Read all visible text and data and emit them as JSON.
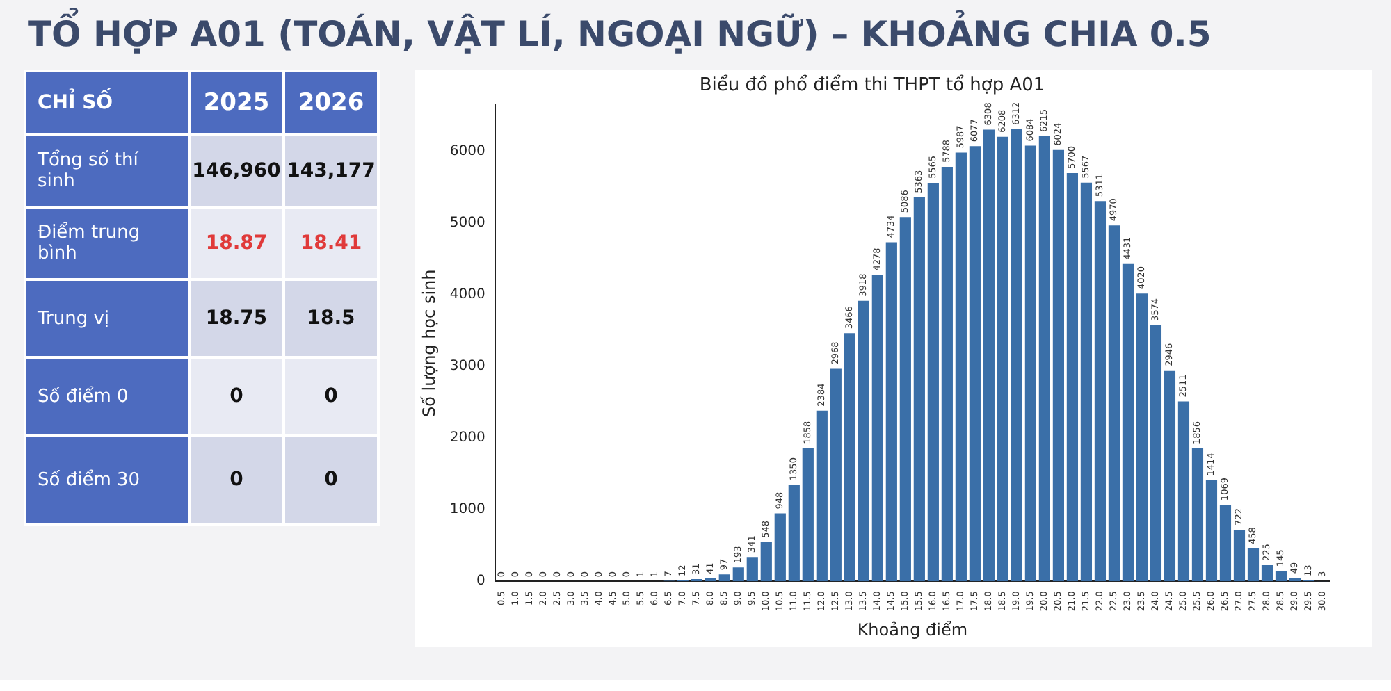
{
  "chart_data": [
    {
      "type": "other",
      "title": "TỔ HỢP A01 (TOÁN, VẬT LÍ, NGOẠI NGỮ) – KHOẢNG CHIA 0.5",
      "annotations": [
        "CHỈ SỐ"
      ],
      "categories": [
        "2025",
        "2026"
      ],
      "y_categories": [
        "Tổng số thí sinh",
        "Điểm trung bình",
        "Trung vị",
        "Số điểm 0",
        "Số điểm 30"
      ],
      "cell_labels": [
        [
          "146,960",
          "143,177"
        ],
        [
          "18.87",
          "18.41"
        ],
        [
          "18.75",
          "18.5"
        ],
        [
          "0",
          "0"
        ],
        [
          "0",
          "0"
        ]
      ]
    },
    {
      "type": "bar",
      "title": "Biểu đồ phổ điểm thi THPT tổ hợp A01",
      "xlabel": "Khoảng điểm",
      "ylabel": "Số lượng học sinh",
      "categories": [
        "0.5",
        "1.0",
        "1.5",
        "2.0",
        "2.5",
        "3.0",
        "3.5",
        "4.0",
        "4.5",
        "5.0",
        "5.5",
        "6.0",
        "6.5",
        "7.0",
        "7.5",
        "8.0",
        "8.5",
        "9.0",
        "9.5",
        "10.0",
        "10.5",
        "11.0",
        "11.5",
        "12.0",
        "12.5",
        "13.0",
        "13.5",
        "14.0",
        "14.5",
        "15.0",
        "15.5",
        "16.0",
        "16.5",
        "17.0",
        "17.5",
        "18.0",
        "18.5",
        "19.0",
        "19.5",
        "20.0",
        "20.5",
        "21.0",
        "21.5",
        "22.0",
        "22.5",
        "23.0",
        "23.5",
        "24.0",
        "24.5",
        "25.0",
        "25.5",
        "26.0",
        "26.5",
        "27.0",
        "27.5",
        "28.0",
        "28.5",
        "29.0",
        "29.5",
        "30.0"
      ],
      "values": [
        0,
        0,
        0,
        0,
        0,
        0,
        0,
        0,
        0,
        0,
        1,
        1,
        7,
        12,
        31,
        41,
        97,
        193,
        341,
        548,
        948,
        1350,
        1858,
        2384,
        2968,
        3466,
        3918,
        4278,
        4734,
        5086,
        5363,
        5565,
        5788,
        5987,
        6077,
        6308,
        6208,
        6312,
        6084,
        6215,
        6024,
        5700,
        5567,
        5311,
        4970,
        4431,
        4020,
        3574,
        2946,
        2511,
        1856,
        1414,
        1069,
        722,
        458,
        225,
        145,
        49,
        13,
        3
      ],
      "color": "#3a6fa8",
      "ylim": [
        0,
        6650
      ],
      "yticks": [
        0,
        1000,
        2000,
        3000,
        4000,
        5000,
        6000
      ],
      "data_labels": true,
      "grid": false,
      "legend": false
    }
  ]
}
